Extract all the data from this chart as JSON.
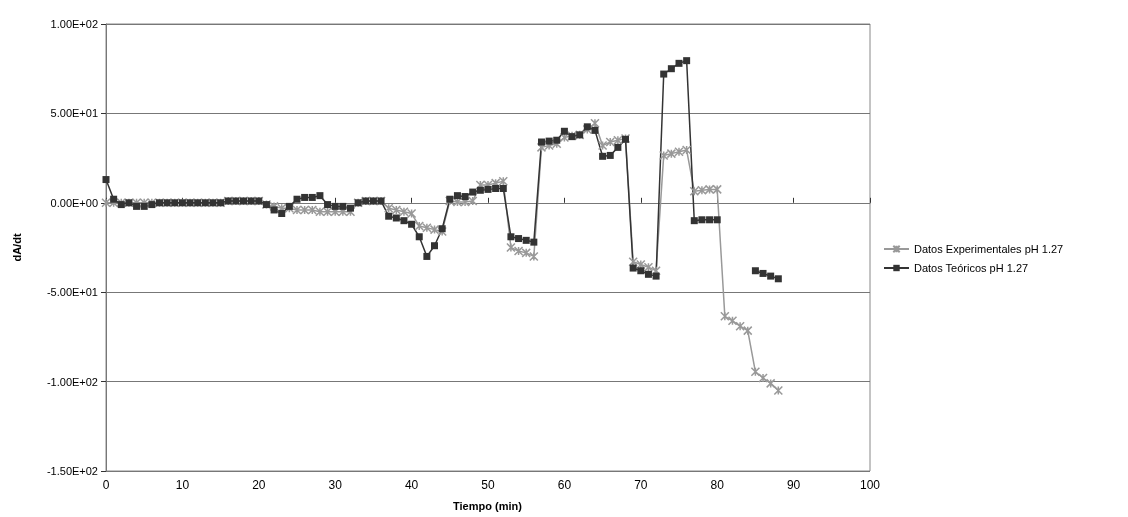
{
  "chart_data": {
    "type": "line",
    "xlabel": "Tiempo (min)",
    "ylabel": "dA/dt",
    "x": [
      0,
      1,
      2,
      3,
      4,
      5,
      6,
      7,
      8,
      9,
      10,
      11,
      12,
      13,
      14,
      15,
      16,
      17,
      18,
      19,
      20,
      21,
      22,
      23,
      24,
      25,
      26,
      27,
      28,
      29,
      30,
      31,
      32,
      33,
      34,
      35,
      36,
      37,
      38,
      39,
      40,
      41,
      42,
      43,
      44,
      45,
      46,
      47,
      48,
      49,
      50,
      51,
      52,
      53,
      54,
      55,
      56,
      57,
      58,
      59,
      60,
      61,
      62,
      63,
      64,
      65,
      66,
      67,
      68,
      69,
      70,
      71,
      72,
      73,
      74,
      75,
      76,
      77,
      78,
      79,
      80,
      81,
      82,
      83,
      84,
      85,
      86,
      87,
      88
    ],
    "series": [
      {
        "name": "Datos Experimentales pH 1.27",
        "color": "#999999",
        "marker": "cross",
        "values": [
          0,
          0,
          0,
          0,
          0,
          0,
          0,
          0,
          0,
          0,
          0,
          0,
          0,
          0,
          0,
          0,
          1,
          1,
          1,
          1,
          1,
          -1,
          -2,
          -3,
          -3,
          -4,
          -4,
          -4,
          -5,
          -5,
          -5,
          -5,
          -5,
          0,
          1,
          1,
          1,
          -3,
          -4,
          -5,
          -6,
          -13,
          -14,
          -15,
          -16,
          1,
          0.5,
          0.5,
          1,
          10,
          10,
          11,
          12,
          -25,
          -27,
          -28,
          -30,
          31,
          32,
          33,
          36.5,
          37.5,
          38,
          41,
          44.5,
          32,
          34,
          35,
          36,
          -33,
          -34.5,
          -36,
          -38,
          26.5,
          27.5,
          28.5,
          29.5,
          6.5,
          7,
          7.5,
          7.5,
          -63.5,
          -66,
          -69,
          -71.5,
          -94.5,
          -98,
          -101,
          -105
        ]
      },
      {
        "name": "Datos Teóricos pH 1.27",
        "color": "#333333",
        "marker": "square",
        "values": [
          13,
          2,
          -1,
          0,
          -2,
          -2,
          -1,
          0,
          0,
          0,
          0,
          0,
          0,
          0,
          0,
          0,
          1,
          1,
          1,
          1,
          1,
          -1,
          -4,
          -6,
          -2,
          2,
          3,
          3,
          4,
          -1,
          -2,
          -2,
          -3,
          0,
          1,
          1,
          1,
          -7.5,
          -8.5,
          -10,
          -12,
          -19,
          -30,
          -24,
          -14.5,
          2,
          4,
          3.5,
          6,
          7,
          7.5,
          8,
          8,
          -19,
          -20,
          -21,
          -22,
          34,
          34.5,
          35,
          40,
          37,
          38,
          42.5,
          40.5,
          26,
          26.5,
          31,
          35.5,
          -36.5,
          -38,
          -40,
          -41,
          72,
          75,
          78,
          79.5,
          -10,
          -9.5,
          -9.5,
          -9.5,
          null,
          null,
          null,
          null,
          -38,
          -39.5,
          -41,
          -42.5
        ]
      }
    ],
    "xlim": [
      0,
      100
    ],
    "xticks": [
      0,
      10,
      20,
      30,
      40,
      50,
      60,
      70,
      80,
      90,
      100
    ],
    "ylim": [
      -150,
      100
    ],
    "yticks": [
      {
        "value": -150,
        "label": "-1.50E+02"
      },
      {
        "value": -100,
        "label": "-1.00E+02"
      },
      {
        "value": -50,
        "label": "-5.00E+01"
      },
      {
        "value": 0,
        "label": "0.00E+00"
      },
      {
        "value": 50,
        "label": "5.00E+01"
      },
      {
        "value": 100,
        "label": "1.00E+02"
      }
    ],
    "grid": "y",
    "legend": "right",
    "line_style": "solid"
  }
}
